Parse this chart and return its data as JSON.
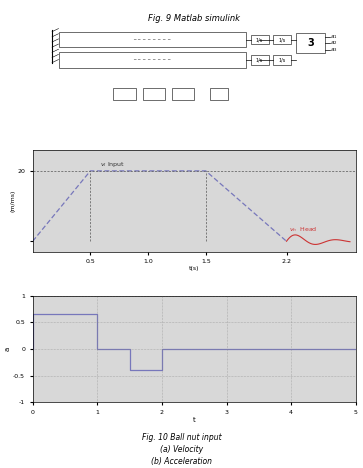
{
  "fig_title_simulink": "Fig. 9 Matlab simulink",
  "fig_caption": "Fig. 10 Ball nut input\n(a) Velocity\n(b) Acceleration",
  "velocity": {
    "ylabel": "(m/ms)",
    "xlabel": "t(s)",
    "label_input": "v_i Input",
    "label_head": "v_h  Head",
    "trapezoid_t": [
      0,
      0.5,
      1.5,
      2.2
    ],
    "trapezoid_v": [
      0,
      20,
      20,
      0
    ],
    "xlim": [
      0,
      2.8
    ],
    "ylim": [
      -3,
      26
    ],
    "xticks": [
      0.5,
      1.0,
      1.5,
      2.2
    ],
    "xticklabels": [
      "0.5",
      "1.0",
      "1.5",
      "2.2"
    ],
    "ytick_20": 20,
    "panel_label": "(a)"
  },
  "acceleration": {
    "ylabel": "a",
    "xlabel": "t",
    "step_t": [
      0,
      0,
      1,
      1,
      1.5,
      1.5,
      2.0,
      2.0,
      5
    ],
    "step_a": [
      0,
      0.65,
      0.65,
      0.0,
      0.0,
      -0.4,
      -0.4,
      0.0,
      0.0
    ],
    "xlim": [
      0,
      5
    ],
    "ylim": [
      -1,
      1
    ],
    "yticks": [
      -1,
      -0.5,
      0,
      0.5,
      1
    ],
    "xticks": [
      0,
      1,
      2,
      3,
      4,
      5
    ]
  },
  "color_blue": "#7777bb",
  "color_red": "#cc3333",
  "bg_plot": "#d8d8d8",
  "bg_simulink": "#e0e0e8"
}
